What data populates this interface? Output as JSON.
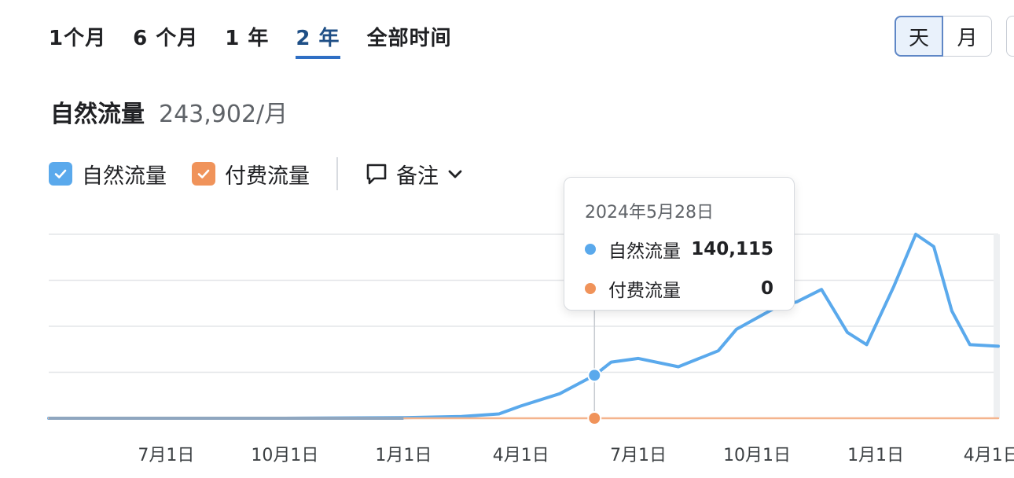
{
  "range_tabs": [
    {
      "label": "1个月",
      "active": false
    },
    {
      "label": "6 个月",
      "active": false
    },
    {
      "label": "1 年",
      "active": false
    },
    {
      "label": "2 年",
      "active": true
    },
    {
      "label": "全部时间",
      "active": false
    }
  ],
  "granularity": {
    "day_label": "天",
    "month_label": "月",
    "selected": "天"
  },
  "metric": {
    "label": "自然流量",
    "value": "243,902/月"
  },
  "legend": {
    "organic_label": "自然流量",
    "paid_label": "付费流量",
    "notes_label": "备注"
  },
  "colors": {
    "organic": "#5aa9ec",
    "paid": "#f0935a",
    "accent": "#2f6fc4"
  },
  "tooltip": {
    "date": "2024年5月28日",
    "organic_label": "自然流量",
    "organic_value": "140,115",
    "paid_label": "付费流量",
    "paid_value": "0"
  },
  "chart_data": {
    "type": "line",
    "x_tick_labels": [
      "7月1日",
      "10月1日",
      "1月1日",
      "4月1日",
      "7月1日",
      "10月1日",
      "1月1日",
      "4月1日"
    ],
    "x_range": [
      "2023-04-01",
      "2025-04-06"
    ],
    "y_gridlines": 5,
    "grid": true,
    "legend_position": "top-left",
    "series": [
      {
        "name": "自然流量",
        "color": "#5aa9ec",
        "points": [
          [
            "2023-04-01",
            0
          ],
          [
            "2023-07-01",
            0
          ],
          [
            "2023-10-01",
            0
          ],
          [
            "2024-01-01",
            2000
          ],
          [
            "2024-02-15",
            6000
          ],
          [
            "2024-03-15",
            14000
          ],
          [
            "2024-04-01",
            40000
          ],
          [
            "2024-05-01",
            80000
          ],
          [
            "2024-05-28",
            140115
          ],
          [
            "2024-06-10",
            183000
          ],
          [
            "2024-07-01",
            195000
          ],
          [
            "2024-08-01",
            168000
          ],
          [
            "2024-09-01",
            220000
          ],
          [
            "2024-09-15",
            290000
          ],
          [
            "2024-10-15",
            360000
          ],
          [
            "2024-11-01",
            380000
          ],
          [
            "2024-11-20",
            420000
          ],
          [
            "2024-12-10",
            280000
          ],
          [
            "2024-12-25",
            240000
          ],
          [
            "2025-01-15",
            430000
          ],
          [
            "2025-02-01",
            600000
          ],
          [
            "2025-02-15",
            560000
          ],
          [
            "2025-03-01",
            350000
          ],
          [
            "2025-03-15",
            240000
          ],
          [
            "2025-04-06",
            235000
          ]
        ]
      },
      {
        "name": "付费流量",
        "color": "#f0935a",
        "points": [
          [
            "2023-04-01",
            0
          ],
          [
            "2024-05-28",
            0
          ],
          [
            "2025-04-06",
            0
          ]
        ]
      }
    ],
    "highlight": {
      "date": "2024-05-28",
      "organic": 140115,
      "paid": 0
    }
  }
}
